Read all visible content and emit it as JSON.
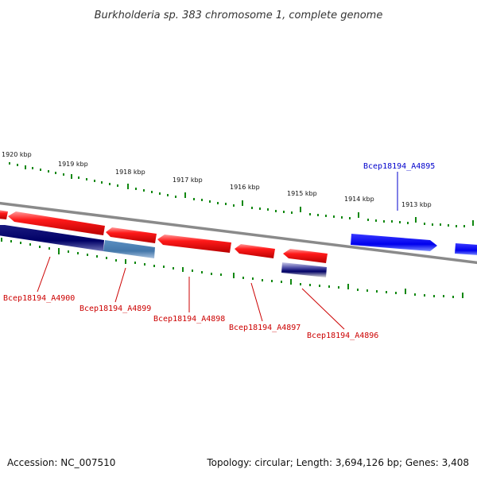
{
  "title": "Burkholderia sp. 383 chromosome 1, complete genome",
  "footer": {
    "accession": "Accession: NC_007510",
    "topology": "Topology: circular; Length: 3,694,126 bp; Genes: 3,408"
  },
  "scale": {
    "unit": "kbp",
    "ticks": [
      "1920 kbp",
      "1919 kbp",
      "1918 kbp",
      "1917 kbp",
      "1916 kbp",
      "1915 kbp",
      "1914 kbp",
      "1913 kbp"
    ]
  },
  "colors": {
    "forward_gene": "#ff0000",
    "reverse_gene": "#0000ee",
    "reverse_gene_dark": "#000066",
    "reverse_gene_light": "#4477aa",
    "forward_label": "#cc0000",
    "reverse_label": "#0000cc",
    "backbone": "#888888",
    "tick_marks": "#118811"
  },
  "genes": [
    {
      "id": "Bcep18194_A4900",
      "strand": "reverse",
      "color": "#000066"
    },
    {
      "id": "Bcep18194_A4899",
      "strand": "reverse",
      "color": "#4477aa"
    },
    {
      "id": "Bcep18194_A4898",
      "strand": "forward",
      "color": "#ff0000"
    },
    {
      "id": "Bcep18194_A4897",
      "strand": "forward",
      "color": "#ff0000"
    },
    {
      "id": "Bcep18194_A4896",
      "strand": "forward",
      "color": "#ff0000"
    },
    {
      "id": "Bcep18194_A4895",
      "strand": "reverse",
      "color": "#0000ee"
    }
  ]
}
